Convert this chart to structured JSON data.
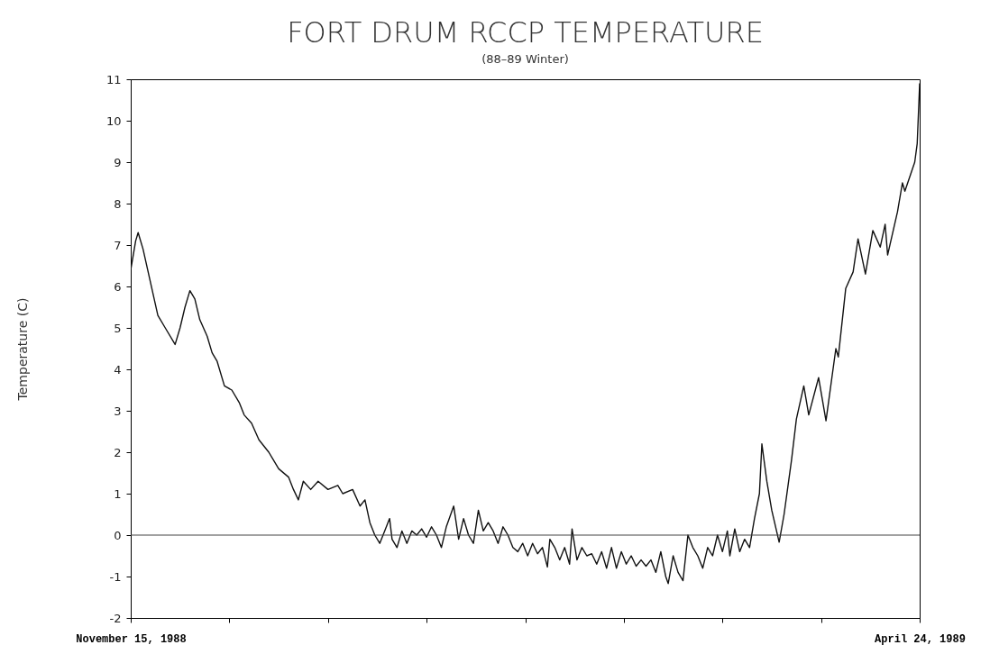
{
  "chart_data": {
    "type": "line",
    "title": "FORT DRUM RCCP TEMPERATURE",
    "subtitle": "(88–89 Winter)",
    "ylabel": "Temperature (C)",
    "color": "#111111",
    "grid": false,
    "xlim": [
      "1988-11-15",
      "1989-04-24"
    ],
    "xticks": [
      {
        "value": "1988-11-15",
        "label": "November 15, 1988"
      },
      {
        "value": "1988-12-05",
        "label": null
      },
      {
        "value": "1988-12-25",
        "label": null
      },
      {
        "value": "1989-01-14",
        "label": null
      },
      {
        "value": "1989-02-03",
        "label": null
      },
      {
        "value": "1989-02-23",
        "label": null
      },
      {
        "value": "1989-03-15",
        "label": null
      },
      {
        "value": "1989-04-04",
        "label": null
      },
      {
        "value": "1989-04-24",
        "label": "April 24, 1989"
      }
    ],
    "ylim": [
      -2,
      11
    ],
    "yticks": [
      -2,
      -1,
      0,
      1,
      2,
      3,
      4,
      5,
      6,
      7,
      8,
      9,
      10,
      11
    ],
    "ref_lines": [
      {
        "axis": "y",
        "value": 0,
        "color": "#444444"
      }
    ],
    "x": [
      "1988-11-15",
      "1988-11-16",
      "1988-11-16T12:00",
      "1988-11-17T12:00",
      "1988-11-19",
      "1988-11-20T12:00",
      "1988-11-22",
      "1988-11-24",
      "1988-11-25",
      "1988-11-26",
      "1988-11-27",
      "1988-11-28",
      "1988-11-29",
      "1988-11-30T12:00",
      "1988-12-01T12:00",
      "1988-12-02T12:00",
      "1988-12-04",
      "1988-12-05T12:00",
      "1988-12-07",
      "1988-12-08",
      "1988-12-09T12:00",
      "1988-12-11",
      "1988-12-13",
      "1988-12-15",
      "1988-12-17",
      "1988-12-18",
      "1988-12-19",
      "1988-12-20",
      "1988-12-21T12:00",
      "1988-12-23",
      "1988-12-25",
      "1988-12-27",
      "1988-12-28",
      "1988-12-30",
      "1988-12-31T12:00",
      "1989-01-01T12:00",
      "1989-01-02T12:00",
      "1989-01-03T12:00",
      "1989-01-04T12:00",
      "1989-01-05T12:00",
      "1989-01-06T12:00",
      "1989-01-07",
      "1989-01-08",
      "1989-01-09",
      "1989-01-10",
      "1989-01-11",
      "1989-01-12",
      "1989-01-13",
      "1989-01-14",
      "1989-01-15",
      "1989-01-16",
      "1989-01-17",
      "1989-01-18",
      "1989-01-19T12:00",
      "1989-01-20T12:00",
      "1989-01-21T12:00",
      "1989-01-22T12:00",
      "1989-01-23T12:00",
      "1989-01-24T12:00",
      "1989-01-25T12:00",
      "1989-01-26T12:00",
      "1989-01-27T12:00",
      "1989-01-28T12:00",
      "1989-01-29T12:00",
      "1989-01-30T12:00",
      "1989-01-31T12:00",
      "1989-02-01T12:00",
      "1989-02-02T12:00",
      "1989-02-03T12:00",
      "1989-02-04T12:00",
      "1989-02-05T12:00",
      "1989-02-06T12:00",
      "1989-02-07T12:00",
      "1989-02-08",
      "1989-02-09",
      "1989-02-10",
      "1989-02-11",
      "1989-02-12",
      "1989-02-12T12:00",
      "1989-02-13T12:00",
      "1989-02-14T12:00",
      "1989-02-15T12:00",
      "1989-02-16T12:00",
      "1989-02-17T12:00",
      "1989-02-18T12:00",
      "1989-02-19T12:00",
      "1989-02-20T12:00",
      "1989-02-21T12:00",
      "1989-02-22T12:00",
      "1989-02-23T12:00",
      "1989-02-24T12:00",
      "1989-02-25T12:00",
      "1989-02-26T12:00",
      "1989-02-27T12:00",
      "1989-02-28T12:00",
      "1989-03-01T12:00",
      "1989-03-02T12:00",
      "1989-03-03T12:00",
      "1989-03-04",
      "1989-03-05",
      "1989-03-06",
      "1989-03-07",
      "1989-03-08",
      "1989-03-09",
      "1989-03-10",
      "1989-03-11",
      "1989-03-12",
      "1989-03-13",
      "1989-03-14",
      "1989-03-15",
      "1989-03-16",
      "1989-03-16T12:00",
      "1989-03-17T12:00",
      "1989-03-18T12:00",
      "1989-03-19T12:00",
      "1989-03-20T12:00",
      "1989-03-21T12:00",
      "1989-03-22T12:00",
      "1989-03-23",
      "1989-03-24",
      "1989-03-25",
      "1989-03-26T12:00",
      "1989-03-27T12:00",
      "1989-03-29",
      "1989-03-30",
      "1989-03-31T12:00",
      "1989-04-01T12:00",
      "1989-04-03T12:00",
      "1989-04-05",
      "1989-04-07",
      "1989-04-07T12:00",
      "1989-04-09",
      "1989-04-10T12:00",
      "1989-04-11T12:00",
      "1989-04-13",
      "1989-04-14T12:00",
      "1989-04-16",
      "1989-04-17",
      "1989-04-17T12:00",
      "1989-04-19T12:00",
      "1989-04-20T12:00",
      "1989-04-21",
      "1989-04-23",
      "1989-04-23T12:00",
      "1989-04-24"
    ],
    "values": [
      6.4,
      7.1,
      7.3,
      6.9,
      6.1,
      5.3,
      5.0,
      4.6,
      5.0,
      5.5,
      5.9,
      5.7,
      5.2,
      4.8,
      4.4,
      4.2,
      3.6,
      3.5,
      3.2,
      2.9,
      2.7,
      2.3,
      2.0,
      1.6,
      1.4,
      1.1,
      0.85,
      1.3,
      1.1,
      1.3,
      1.1,
      1.2,
      1.0,
      1.1,
      0.7,
      0.85,
      0.3,
      0.0,
      -0.2,
      0.1,
      0.4,
      -0.1,
      -0.3,
      0.1,
      -0.2,
      0.1,
      0.0,
      0.15,
      -0.05,
      0.2,
      0.0,
      -0.3,
      0.2,
      0.7,
      -0.1,
      0.4,
      0.0,
      -0.2,
      0.6,
      0.1,
      0.3,
      0.1,
      -0.2,
      0.2,
      0.0,
      -0.3,
      -0.4,
      -0.2,
      -0.5,
      -0.2,
      -0.45,
      -0.3,
      -0.77,
      -0.1,
      -0.3,
      -0.6,
      -0.3,
      -0.7,
      0.15,
      -0.6,
      -0.3,
      -0.5,
      -0.45,
      -0.7,
      -0.4,
      -0.8,
      -0.3,
      -0.8,
      -0.4,
      -0.7,
      -0.5,
      -0.75,
      -0.6,
      -0.75,
      -0.6,
      -0.9,
      -0.4,
      -1.0,
      -1.17,
      -0.5,
      -0.9,
      -1.1,
      0.0,
      -0.3,
      -0.5,
      -0.8,
      -0.3,
      -0.5,
      0.0,
      -0.4,
      0.1,
      -0.5,
      0.15,
      -0.4,
      -0.1,
      -0.3,
      0.4,
      1.0,
      2.2,
      1.3,
      0.6,
      -0.17,
      0.5,
      1.8,
      2.8,
      3.6,
      2.9,
      3.8,
      2.76,
      4.5,
      4.3,
      5.95,
      6.35,
      7.15,
      6.3,
      7.35,
      6.95,
      7.5,
      6.76,
      7.8,
      8.5,
      8.3,
      9.0,
      9.45,
      10.9
    ]
  }
}
